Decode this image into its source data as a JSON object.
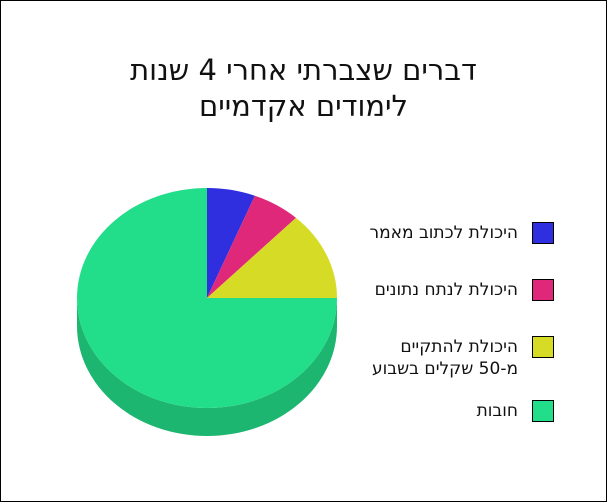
{
  "chart_data": {
    "type": "pie",
    "title": [
      "דברים שצברתי אחרי 4 שנות",
      "לימודים אקדמיים"
    ],
    "slices": [
      {
        "label": "היכולת לכתוב מאמר",
        "value": 6,
        "color": "#2f2fe0"
      },
      {
        "label": "היכולת לנתח נתונים",
        "value": 6,
        "color": "#e0287a"
      },
      {
        "label": "היכולת להתקיים\nמ-50 שקלים בשבוע",
        "value": 13,
        "color": "#d6dc26"
      },
      {
        "label": "חובות",
        "value": 75,
        "color": "#22de8a"
      }
    ],
    "legend_position": "right",
    "three_d": true
  }
}
